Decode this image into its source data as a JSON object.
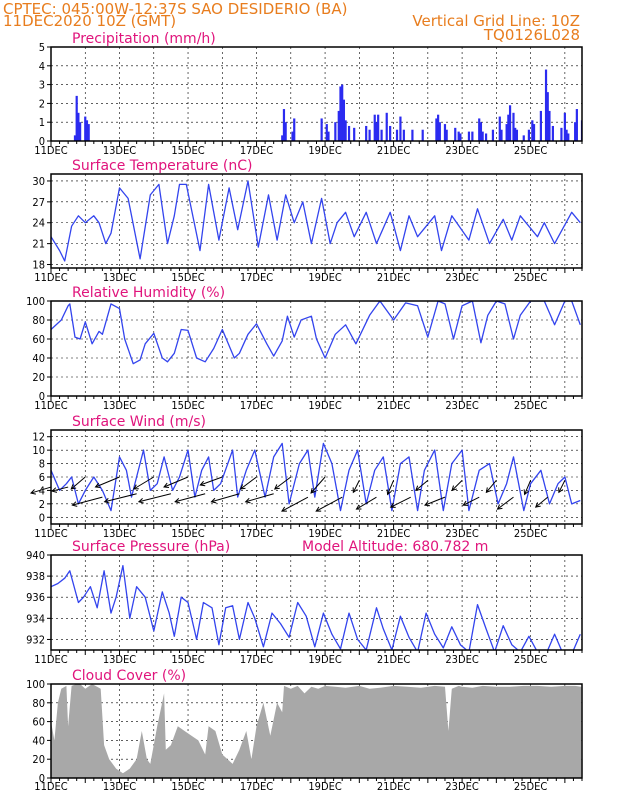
{
  "header": {
    "line1_left": "CPTEC:   045:00W-12:37S  SAO DESIDERIO (BA)",
    "line2_left": "11DEC2020 10Z (GMT)",
    "line2_right": "Vertical Grid Line: 10Z",
    "line3_right": "TQ0126L028"
  },
  "x_tick_labels": [
    "11DEC",
    "13DEC",
    "15DEC",
    "17DEC",
    "19DEC",
    "21DEC",
    "23DEC",
    "25DEC"
  ],
  "colors": {
    "header": "#e87d1e",
    "title": "#e0147c",
    "line": "#3344ee",
    "bars": "#2b2bf0",
    "cloud": "#a8a8a8",
    "arrow": "#000000"
  },
  "chart_data": [
    {
      "type": "bar",
      "title": "Precipitation (mm/h)",
      "ylim": [
        0,
        5
      ],
      "yticks": [
        0,
        1,
        2,
        3,
        4,
        5
      ],
      "x_unit": "day offset from 11DEC2020 10Z",
      "x": [
        0.7,
        0.75,
        0.8,
        0.85,
        1.0,
        1.05,
        1.1,
        6.75,
        6.8,
        6.85,
        7.05,
        7.1,
        7.9,
        8.05,
        8.1,
        8.3,
        8.4,
        8.45,
        8.5,
        8.55,
        8.6,
        8.7,
        8.85,
        9.2,
        9.3,
        9.45,
        9.5,
        9.55,
        9.65,
        9.8,
        9.9,
        10.1,
        10.2,
        10.3,
        10.55,
        10.85,
        11.25,
        11.3,
        11.35,
        11.5,
        11.55,
        11.8,
        11.9,
        11.95,
        12.2,
        12.3,
        12.5,
        12.55,
        12.6,
        12.7,
        12.9,
        13.1,
        13.15,
        13.3,
        13.35,
        13.4,
        13.5,
        13.55,
        13.6,
        13.8,
        13.95,
        14.05,
        14.1,
        14.3,
        14.45,
        14.5,
        14.55,
        14.65,
        14.9,
        15.0,
        15.05,
        15.1,
        15.3,
        15.35,
        15.5
      ],
      "values": [
        0.3,
        2.4,
        1.5,
        1.0,
        1.3,
        1.1,
        0.9,
        0.3,
        1.7,
        1.0,
        0.5,
        1.2,
        1.2,
        0.9,
        0.5,
        1.0,
        1.6,
        2.9,
        3.0,
        2.2,
        1.1,
        0.8,
        0.7,
        0.8,
        0.6,
        1.4,
        1.0,
        1.4,
        0.6,
        1.5,
        0.8,
        0.6,
        1.3,
        0.6,
        0.6,
        0.6,
        1.2,
        1.4,
        1.0,
        0.9,
        0.6,
        0.7,
        0.5,
        0.4,
        0.5,
        0.5,
        1.2,
        1.0,
        0.5,
        0.4,
        0.6,
        1.3,
        0.6,
        0.9,
        1.4,
        1.9,
        1.5,
        0.7,
        0.6,
        0.3,
        0.6,
        1.1,
        0.9,
        1.6,
        3.8,
        2.6,
        1.6,
        0.8,
        0.7,
        1.5,
        0.6,
        0.4,
        1.0,
        1.7,
        1.1
      ]
    },
    {
      "type": "line",
      "title": "Surface Temperature (nC)",
      "ylim": [
        17.5,
        31
      ],
      "yticks": [
        18,
        21,
        24,
        27,
        30
      ],
      "x_unit": "day offset from 11DEC2020 10Z",
      "x": [
        0.0,
        0.25,
        0.4,
        0.6,
        0.8,
        1.0,
        1.25,
        1.4,
        1.6,
        1.75,
        2.0,
        2.25,
        2.6,
        2.9,
        3.15,
        3.4,
        3.6,
        3.75,
        3.95,
        4.35,
        4.6,
        4.9,
        5.2,
        5.45,
        5.75,
        6.05,
        6.35,
        6.6,
        6.85,
        7.1,
        7.35,
        7.6,
        7.9,
        8.15,
        8.35,
        8.6,
        8.85,
        9.2,
        9.5,
        9.9,
        10.2,
        10.45,
        10.7,
        11.2,
        11.4,
        11.7,
        12.2,
        12.45,
        12.8,
        13.2,
        13.45,
        13.7,
        14.2,
        14.4,
        14.7,
        15.2,
        15.45
      ],
      "values": [
        22.0,
        20.0,
        18.5,
        23.5,
        25.0,
        24.0,
        25.0,
        24.0,
        21.0,
        22.5,
        29.0,
        27.5,
        18.8,
        28.0,
        29.5,
        21.0,
        25.0,
        29.5,
        29.5,
        20.0,
        29.5,
        21.5,
        29.0,
        23.0,
        30.0,
        20.5,
        28.0,
        21.5,
        28.0,
        24.0,
        27.0,
        21.0,
        27.5,
        21.0,
        24.0,
        25.5,
        22.0,
        25.5,
        21.0,
        25.5,
        20.0,
        25.0,
        22.0,
        25.0,
        20.0,
        25.0,
        21.5,
        26.0,
        21.0,
        24.5,
        21.5,
        25.0,
        22.0,
        24.0,
        21.0,
        25.5,
        24.0
      ]
    },
    {
      "type": "line",
      "title": "Relative Humidity (%)",
      "ylim": [
        0,
        100
      ],
      "yticks": [
        0,
        20,
        40,
        60,
        80,
        100
      ],
      "x_unit": "day offset from 11DEC2020 10Z",
      "x": [
        0.0,
        0.3,
        0.5,
        0.55,
        0.7,
        0.85,
        1.0,
        1.2,
        1.4,
        1.5,
        1.75,
        2.0,
        2.15,
        2.4,
        2.6,
        2.75,
        3.0,
        3.25,
        3.4,
        3.6,
        3.8,
        4.0,
        4.25,
        4.5,
        4.75,
        5.0,
        5.35,
        5.5,
        5.75,
        6.0,
        6.3,
        6.5,
        6.75,
        6.9,
        7.1,
        7.3,
        7.6,
        7.75,
        8.0,
        8.3,
        8.6,
        8.9,
        9.3,
        9.6,
        10.0,
        10.35,
        10.7,
        11.0,
        11.3,
        11.5,
        11.75,
        12.0,
        12.3,
        12.55,
        12.75,
        13.0,
        13.25,
        13.5,
        13.7,
        14.0,
        14.4,
        14.7,
        15.0,
        15.2,
        15.45
      ],
      "values": [
        70,
        80,
        95,
        97,
        62,
        60,
        78,
        55,
        68,
        65,
        97,
        92,
        60,
        34,
        38,
        55,
        66,
        40,
        36,
        45,
        70,
        69,
        40,
        36,
        50,
        70,
        40,
        45,
        65,
        76,
        55,
        42,
        58,
        84,
        62,
        80,
        84,
        60,
        40,
        65,
        75,
        55,
        85,
        100,
        80,
        98,
        95,
        62,
        100,
        97,
        60,
        95,
        100,
        56,
        85,
        100,
        97,
        60,
        85,
        100,
        100,
        75,
        100,
        100,
        75
      ]
    },
    {
      "type": "line",
      "title": "Surface Wind (m/s)",
      "ylim": [
        -1,
        13
      ],
      "yticks": [
        0,
        2,
        4,
        6,
        8,
        10,
        12
      ],
      "x_unit": "day offset from 11DEC2020 10Z",
      "x": [
        0.0,
        0.25,
        0.45,
        0.6,
        0.8,
        1.0,
        1.25,
        1.5,
        1.75,
        2.0,
        2.2,
        2.35,
        2.5,
        2.7,
        2.9,
        3.1,
        3.3,
        3.55,
        3.75,
        4.0,
        4.2,
        4.4,
        4.6,
        4.75,
        4.95,
        5.3,
        5.45,
        5.7,
        5.95,
        6.25,
        6.5,
        6.75,
        6.95,
        7.25,
        7.5,
        7.7,
        7.95,
        8.2,
        8.45,
        8.7,
        8.95,
        9.2,
        9.45,
        9.7,
        9.95,
        10.2,
        10.45,
        10.7,
        10.9,
        11.2,
        11.45,
        11.7,
        12.0,
        12.2,
        12.5,
        12.8,
        13.05,
        13.3,
        13.5,
        13.8,
        14.0,
        14.3,
        14.55,
        14.8,
        15.0,
        15.2,
        15.45
      ],
      "values": [
        7,
        4,
        5,
        6,
        2,
        4,
        6,
        4,
        1,
        9,
        7,
        3,
        6,
        10,
        4,
        5,
        9,
        4,
        6,
        10,
        3,
        7,
        9,
        4,
        5,
        10,
        3,
        7,
        10,
        3,
        9,
        11,
        2,
        8,
        10,
        3,
        11,
        8,
        1,
        7,
        10,
        2,
        7,
        9,
        1,
        8,
        9,
        1,
        7,
        10,
        1,
        8,
        10,
        1,
        7,
        8,
        2,
        5,
        9,
        1,
        5,
        7,
        2,
        5,
        6,
        2,
        2.5
      ]
    },
    {
      "type": "line",
      "title": "Surface Pressure (hPa)",
      "annotation": "Model Altitude: 680.782 m",
      "ylim": [
        931,
        940
      ],
      "yticks": [
        932,
        934,
        936,
        938,
        940
      ],
      "x_unit": "day offset from 11DEC2020 10Z",
      "x": [
        0.0,
        0.2,
        0.4,
        0.55,
        0.8,
        0.95,
        1.15,
        1.35,
        1.55,
        1.75,
        1.9,
        2.1,
        2.3,
        2.5,
        2.75,
        3.0,
        3.25,
        3.45,
        3.6,
        3.8,
        4.0,
        4.25,
        4.45,
        4.7,
        4.9,
        5.1,
        5.3,
        5.5,
        5.75,
        5.95,
        6.2,
        6.45,
        6.7,
        6.95,
        7.2,
        7.45,
        7.7,
        7.95,
        8.2,
        8.45,
        8.7,
        8.95,
        9.2,
        9.5,
        9.7,
        9.95,
        10.2,
        10.45,
        10.7,
        10.95,
        11.2,
        11.45,
        11.7,
        11.95,
        12.2,
        12.45,
        12.7,
        12.95,
        13.2,
        13.45,
        13.7,
        13.95,
        14.2,
        14.45,
        14.7,
        14.95,
        15.2,
        15.45
      ],
      "values": [
        937.0,
        937.3,
        937.8,
        938.5,
        935.5,
        936.0,
        937.0,
        935.0,
        938.5,
        934.5,
        936.0,
        939.0,
        934.0,
        937.0,
        936.0,
        932.8,
        936.5,
        934.5,
        932.3,
        936.0,
        935.5,
        932.0,
        935.5,
        935.0,
        931.5,
        935.0,
        935.2,
        932.0,
        935.5,
        934.0,
        931.3,
        934.5,
        933.5,
        932.2,
        935.5,
        934.2,
        931.3,
        934.5,
        932.5,
        931.1,
        934.5,
        932.0,
        931.0,
        935.0,
        933.0,
        931.0,
        934.2,
        932.2,
        930.8,
        934.5,
        932.5,
        931.2,
        933.2,
        931.5,
        930.8,
        935.3,
        933.0,
        930.8,
        933.3,
        931.5,
        930.8,
        932.3,
        930.8,
        930.6,
        932.5,
        930.6,
        930.6,
        932.5
      ]
    },
    {
      "type": "area",
      "title": "Cloud Cover (%)",
      "ylim": [
        0,
        100
      ],
      "yticks": [
        0,
        20,
        40,
        60,
        80,
        100
      ],
      "x_unit": "day offset from 11DEC2020 10Z",
      "x": [
        0.0,
        0.1,
        0.2,
        0.3,
        0.45,
        0.5,
        0.6,
        0.75,
        0.85,
        1.0,
        1.2,
        1.45,
        1.55,
        1.7,
        1.9,
        2.1,
        2.3,
        2.5,
        2.65,
        2.8,
        2.9,
        3.1,
        3.3,
        3.35,
        3.5,
        3.7,
        3.9,
        4.1,
        4.3,
        4.5,
        4.6,
        4.8,
        5.0,
        5.3,
        5.5,
        5.7,
        5.85,
        6.0,
        6.2,
        6.4,
        6.6,
        6.75,
        6.8,
        7.0,
        7.2,
        7.4,
        7.6,
        7.8,
        8.0,
        8.3,
        8.6,
        9.0,
        9.3,
        9.6,
        10.0,
        10.4,
        10.8,
        11.2,
        11.5,
        11.6,
        11.7,
        11.9,
        12.0,
        12.3,
        12.6,
        13.0,
        13.4,
        13.8,
        14.2,
        14.6,
        15.0,
        15.3,
        15.48
      ],
      "values": [
        60,
        40,
        80,
        95,
        98,
        55,
        98,
        100,
        100,
        95,
        100,
        95,
        35,
        20,
        10,
        5,
        10,
        20,
        50,
        20,
        15,
        55,
        90,
        30,
        35,
        55,
        50,
        45,
        40,
        25,
        55,
        50,
        25,
        15,
        30,
        50,
        20,
        55,
        80,
        45,
        80,
        70,
        98,
        95,
        98,
        90,
        97,
        95,
        98,
        97,
        96,
        98,
        95,
        96,
        98,
        97,
        96,
        98,
        97,
        50,
        95,
        98,
        97,
        96,
        98,
        97,
        97,
        98,
        98,
        97,
        98,
        98,
        97
      ]
    }
  ],
  "wind_vectors": {
    "x_unit": "day offset from 11DEC2020 10Z",
    "x": [
      0.0,
      0.5,
      1.0,
      1.5,
      2.0,
      2.5,
      3.0,
      3.5,
      4.0,
      4.5,
      5.0,
      5.5,
      6.0,
      6.5,
      7.0,
      7.5,
      8.0,
      8.5,
      9.0,
      9.5,
      10.0,
      10.5,
      11.0,
      11.5,
      12.0,
      12.5,
      13.0,
      13.5,
      14.0,
      14.5,
      15.0
    ],
    "at_value": [
      4.5,
      4.5,
      6,
      3,
      6,
      3.5,
      6,
      3.5,
      6,
      3.5,
      6,
      3.5,
      6,
      3.5,
      6,
      3,
      6,
      3,
      5.5,
      3,
      5.5,
      3,
      5.5,
      3,
      5.5,
      3,
      5.5,
      3,
      5.5,
      3,
      5.5
    ],
    "u": [
      -1.0,
      -0.8,
      -0.7,
      -1.5,
      -1.2,
      -1.6,
      -1.0,
      -1.6,
      -1.2,
      -1.5,
      -1.1,
      -1.4,
      -0.8,
      -1.4,
      -0.8,
      -1.3,
      -0.7,
      -1.3,
      -0.3,
      -1.0,
      -0.3,
      -1.0,
      -0.6,
      -1.0,
      -0.5,
      -0.8,
      -0.5,
      -0.8,
      -0.3,
      -0.6,
      -0.3
    ],
    "v": [
      -0.3,
      -0.2,
      -0.6,
      -0.4,
      -0.5,
      -0.4,
      -0.6,
      -0.4,
      -0.5,
      -0.4,
      -0.4,
      -0.4,
      -0.6,
      -0.4,
      -0.6,
      -0.7,
      -0.8,
      -0.7,
      -0.6,
      -0.6,
      -0.7,
      -0.5,
      -0.5,
      -0.4,
      -0.5,
      -0.4,
      -0.6,
      -0.6,
      -0.7,
      -0.5,
      -0.6
    ]
  }
}
